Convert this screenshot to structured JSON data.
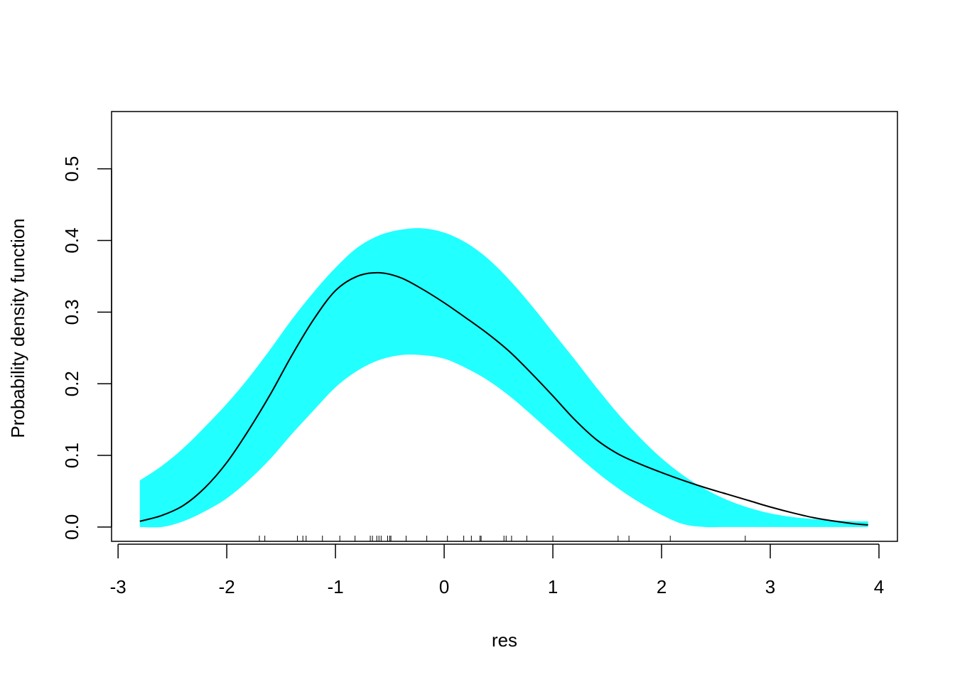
{
  "chart_data": {
    "type": "area",
    "title": "",
    "xlabel": "res",
    "ylabel": "Probability density function",
    "xlim": [
      -3.06,
      4.17
    ],
    "ylim": [
      -0.02,
      0.58
    ],
    "x_ticks": [
      -3,
      -2,
      -1,
      0,
      1,
      2,
      3,
      4
    ],
    "y_ticks": [
      0.0,
      0.1,
      0.2,
      0.3,
      0.4,
      0.5
    ],
    "x_tick_labels": [
      "-3",
      "-2",
      "-1",
      "0",
      "1",
      "2",
      "3",
      "4"
    ],
    "y_tick_labels": [
      "0.0",
      "0.1",
      "0.2",
      "0.3",
      "0.4",
      "0.5"
    ],
    "grid": false,
    "band_color": "#22FFFF",
    "line_color": "#000000",
    "x": [
      -2.8,
      -2.6,
      -2.4,
      -2.2,
      -2.0,
      -1.8,
      -1.6,
      -1.4,
      -1.2,
      -1.0,
      -0.8,
      -0.6,
      -0.4,
      -0.2,
      0.0,
      0.2,
      0.4,
      0.6,
      0.8,
      1.0,
      1.2,
      1.4,
      1.6,
      1.8,
      2.0,
      2.2,
      2.4,
      2.6,
      2.8,
      3.0,
      3.2,
      3.4,
      3.6,
      3.8,
      3.9
    ],
    "series": [
      {
        "role": "estimate",
        "values": [
          0.008,
          0.016,
          0.03,
          0.055,
          0.09,
          0.135,
          0.185,
          0.24,
          0.29,
          0.33,
          0.35,
          0.355,
          0.348,
          0.332,
          0.313,
          0.292,
          0.27,
          0.245,
          0.215,
          0.183,
          0.15,
          0.122,
          0.102,
          0.088,
          0.076,
          0.065,
          0.055,
          0.046,
          0.037,
          0.028,
          0.02,
          0.013,
          0.008,
          0.004,
          0.003
        ]
      },
      {
        "role": "upper",
        "values": [
          0.065,
          0.085,
          0.11,
          0.14,
          0.172,
          0.208,
          0.248,
          0.29,
          0.328,
          0.362,
          0.39,
          0.407,
          0.415,
          0.417,
          0.411,
          0.397,
          0.375,
          0.345,
          0.31,
          0.272,
          0.234,
          0.195,
          0.158,
          0.125,
          0.096,
          0.072,
          0.053,
          0.038,
          0.027,
          0.019,
          0.014,
          0.011,
          0.009,
          0.008,
          0.008
        ]
      },
      {
        "role": "lower",
        "values": [
          0.0,
          0.0,
          0.008,
          0.022,
          0.04,
          0.065,
          0.095,
          0.13,
          0.163,
          0.195,
          0.218,
          0.233,
          0.24,
          0.24,
          0.235,
          0.222,
          0.205,
          0.183,
          0.157,
          0.13,
          0.103,
          0.077,
          0.054,
          0.034,
          0.017,
          0.004,
          0.0,
          0.0,
          0.0,
          0.0,
          0.0,
          0.0,
          0.0,
          0.0,
          0.0
        ]
      }
    ],
    "rug": [
      -1.7,
      -1.65,
      -1.35,
      -1.3,
      -1.27,
      -1.12,
      -0.96,
      -0.82,
      -0.68,
      -0.66,
      -0.62,
      -0.6,
      -0.58,
      -0.52,
      -0.5,
      -0.49,
      -0.35,
      -0.16,
      0.03,
      0.18,
      0.25,
      0.33,
      0.34,
      0.55,
      0.57,
      0.62,
      0.76,
      1.0,
      1.6,
      1.7,
      2.08,
      2.77
    ]
  }
}
